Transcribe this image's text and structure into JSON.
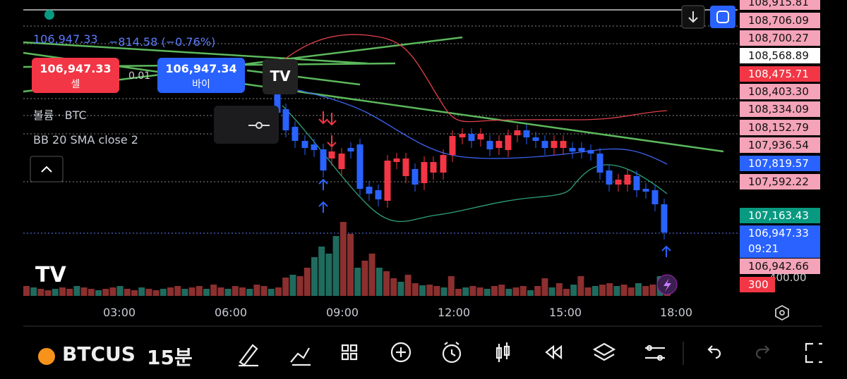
{
  "header": {
    "price": "106,947.33",
    "change": "−814.58 (−0.76%)"
  },
  "trade": {
    "sell_price": "106,947.33",
    "sell_label": "셀",
    "spread": "0.01",
    "buy_price": "106,947.34",
    "buy_label": "바이"
  },
  "indicators": [
    "볼륨 · BTC",
    "BB 20 SMA close 2"
  ],
  "price_axis": [
    "108,915.81",
    "108,706.09",
    "108,700.27",
    "108,568.89",
    "108,475.71",
    "108,403.30",
    "108,334.09",
    "108,152.79",
    "107,936.54",
    "107,819.57",
    "107,592.22",
    "107,163.43",
    "106,947.33",
    "106,942.66"
  ],
  "countdown": "09:21",
  "volume_axis": [
    "300",
    "400.00"
  ],
  "time_axis": [
    "03:00",
    "06:00",
    "09:00",
    "12:00",
    "15:00",
    "18:00"
  ],
  "toolbar": {
    "symbol": "BTCUS",
    "interval": "15분"
  }
}
